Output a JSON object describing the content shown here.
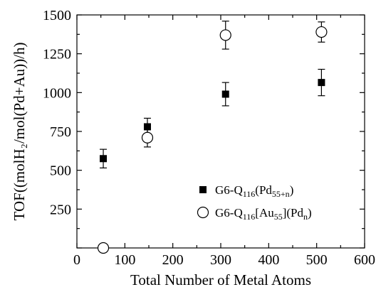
{
  "chart_data": {
    "type": "scatter",
    "xlabel": "Total Number of Metal Atoms",
    "ylabel": "TOF((molH₂/mol(Pd+Au))/h)",
    "xlim": [
      0,
      600
    ],
    "ylim": [
      0,
      1500
    ],
    "x_ticks": [
      "0",
      "100",
      "200",
      "300",
      "400",
      "500",
      "600"
    ],
    "y_ticks": [
      "250",
      "500",
      "750",
      "1000",
      "1250",
      "1500"
    ],
    "grid": false,
    "legend_position": "lower-right",
    "series": [
      {
        "name": "G6-Q116(Pd55+n)",
        "legend_parts": {
          "base": "G6-Q",
          "sub1": "116",
          "mid": "(Pd",
          "sub2": "55+n",
          "end": ")"
        },
        "marker": "filled-square",
        "color": "#000000",
        "points": [
          {
            "x": 55,
            "y": 575,
            "err": 60
          },
          {
            "x": 147,
            "y": 780,
            "err": 55
          },
          {
            "x": 310,
            "y": 990,
            "err": 75
          },
          {
            "x": 510,
            "y": 1065,
            "err": 85
          }
        ]
      },
      {
        "name": "G6-Q116[Au55](Pdn)",
        "legend_parts": {
          "base": "G6-Q",
          "sub1": "116",
          "mid": "[Au",
          "sub2": "55",
          "end": "](Pd",
          "sub3": "n",
          "end2": ")"
        },
        "marker": "open-circle",
        "color": "#000000",
        "points": [
          {
            "x": 55,
            "y": 0,
            "err": 0
          },
          {
            "x": 147,
            "y": 710,
            "err": 60
          },
          {
            "x": 310,
            "y": 1370,
            "err": 90
          },
          {
            "x": 510,
            "y": 1390,
            "err": 65
          }
        ]
      }
    ]
  }
}
